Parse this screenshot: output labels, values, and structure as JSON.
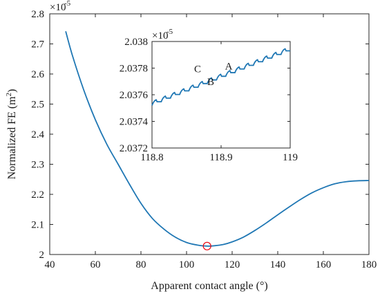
{
  "chart_data": [
    {
      "type": "line",
      "title": "",
      "xlabel": "Apparent contact angle (°)",
      "ylabel_main": "Normalized FE (m",
      "ylabel_sup": "2",
      "ylabel_close": ")",
      "y_exponent_base": "×10",
      "y_exponent_power": "-5",
      "xlim": [
        40,
        180
      ],
      "ylim": [
        2.0,
        2.8
      ],
      "xticks": [
        "40",
        "60",
        "80",
        "100",
        "120",
        "140",
        "160",
        "180"
      ],
      "yticks": [
        "2",
        "2.1",
        "2.2",
        "2.3",
        "2.4",
        "2.5",
        "2.6",
        "2.7",
        "2.8"
      ],
      "line_color": "#1f77b4",
      "marker_color": "#e8000b",
      "grid": false,
      "series": [
        {
          "x": [
            47,
            50,
            55,
            60,
            65,
            70,
            75,
            80,
            85,
            90,
            95,
            100,
            105,
            109,
            112,
            116,
            120,
            125,
            130,
            135,
            140,
            145,
            150,
            155,
            160,
            165,
            170,
            175,
            180
          ],
          "y": [
            2.742,
            2.66,
            2.545,
            2.448,
            2.367,
            2.3,
            2.233,
            2.17,
            2.12,
            2.085,
            2.058,
            2.04,
            2.031,
            2.028,
            2.029,
            2.033,
            2.042,
            2.058,
            2.08,
            2.105,
            2.132,
            2.158,
            2.183,
            2.205,
            2.222,
            2.235,
            2.242,
            2.245,
            2.246
          ]
        }
      ],
      "marker": {
        "x": 109,
        "y": 2.028,
        "shape": "open-circle"
      }
    },
    {
      "type": "line",
      "title": "",
      "inset": true,
      "xlim": [
        118.8,
        119.0
      ],
      "ylim": [
        2.0372,
        2.038
      ],
      "xticks": [
        "118.8",
        "118.9",
        "119"
      ],
      "yticks": [
        "2.0372",
        "2.0374",
        "2.0376",
        "2.0378",
        "2.038"
      ],
      "y_exponent_base": "×10",
      "y_exponent_power": "-5",
      "line_color": "#1f77b4",
      "grid": false,
      "series": [
        {
          "x_start": 118.8,
          "x_end": 119.0,
          "y_start": 2.03752,
          "y_end": 2.03793,
          "steps": 15,
          "drop": 1.5e-05
        }
      ],
      "annotations": [
        {
          "text": "C",
          "x": 118.866,
          "y": 2.03777
        },
        {
          "text": "A",
          "x": 118.911,
          "y": 2.03779
        },
        {
          "text": "B",
          "x": 118.885,
          "y": 2.037672
        }
      ]
    }
  ]
}
